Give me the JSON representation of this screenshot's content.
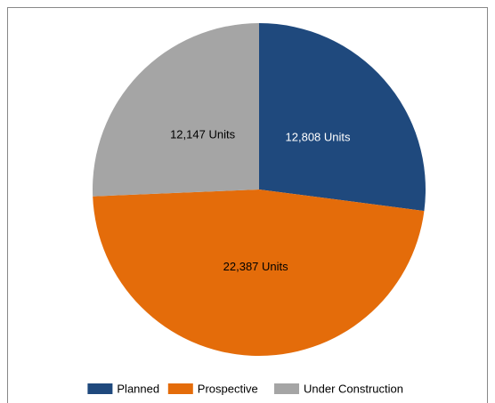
{
  "chart_data": {
    "type": "pie",
    "categories": [
      "Planned",
      "Prospective",
      "Under Construction"
    ],
    "values": [
      12808,
      22387,
      12147
    ],
    "value_labels": [
      "12,808 Units",
      "22,387 Units",
      "12,147 Units"
    ],
    "colors": [
      "#1f497d",
      "#e46c0a",
      "#a5a5a5"
    ],
    "legend": "bottom"
  }
}
